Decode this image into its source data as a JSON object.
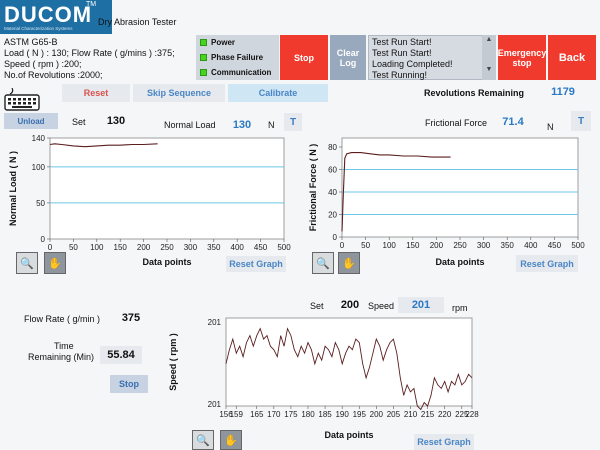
{
  "header": {
    "logo": "DUCOM",
    "logo_tm": "TM",
    "logo_sub": "Material Characterization Systems",
    "machine_title": "Dry Abrasion Tester"
  },
  "test_info": {
    "line1": "ASTM G65-B",
    "line2": "Load ( N ) : 130;  Flow Rate ( g/mins ) :375;",
    "line3": "Speed ( rpm ) :200;",
    "line4": "No.of Revolutions :2000;"
  },
  "status": {
    "items": [
      "Power",
      "Phase Failure",
      "Communication"
    ],
    "led_color": "#48d323"
  },
  "buttons": {
    "stop": "Stop",
    "clear_log": "Clear Log",
    "emergency_stop": "Emergency stop",
    "back": "Back",
    "reset": "Reset",
    "skip_sequence": "Skip Sequence",
    "calibrate": "Calibrate",
    "unload": "Unload",
    "t1": "T",
    "t2": "T",
    "reset_graph": "Reset Graph",
    "stop_timer": "Stop"
  },
  "log": {
    "lines": [
      "Test Run Start!",
      "Test Run Start!",
      "Loading Completed!",
      "Test Running!"
    ]
  },
  "revolutions": {
    "label": "Revolutions Remaining",
    "value": "1179"
  },
  "load": {
    "set_label": "Set",
    "set_value": "130",
    "normal_label": "Normal Load",
    "normal_value": "130",
    "unit": "N"
  },
  "friction": {
    "label": "Frictional Force",
    "value": "71.4",
    "unit": "N"
  },
  "flow": {
    "label": "Flow Rate  ( g/min )",
    "value": "375"
  },
  "time": {
    "label1": "Time",
    "label2": "Remaining (Min)",
    "value": "55.84"
  },
  "speed": {
    "set_label": "Set",
    "set_value": "200",
    "speed_label": "Speed",
    "speed_value": "201",
    "unit": "rpm"
  },
  "colors": {
    "accent_blue": "#2b78c4",
    "red_button": "#f03a2e",
    "grey_button": "#98a8bd",
    "trace": "#5a1e1e",
    "refline": "#6ec6e8"
  },
  "chart_data": [
    {
      "type": "line",
      "xlabel": "Data points",
      "ylabel": "Normal Load ( N )",
      "xlim": [
        0,
        500
      ],
      "ylim": [
        0,
        140
      ],
      "xticks": [
        0,
        50,
        100,
        150,
        200,
        250,
        300,
        350,
        400,
        450,
        500
      ],
      "yticks": [
        0,
        50,
        100,
        140
      ],
      "reference_lines": [
        50,
        100
      ],
      "series": [
        {
          "x": [
            0,
            10,
            25,
            50,
            75,
            100,
            125,
            150,
            175,
            200,
            230
          ],
          "y": [
            131,
            132,
            131,
            129,
            128,
            129,
            130,
            130,
            131,
            131,
            132
          ]
        }
      ]
    },
    {
      "type": "line",
      "xlabel": "Data points",
      "ylabel": "Frictional Force ( N )",
      "xlim": [
        0,
        500
      ],
      "ylim": [
        0,
        88
      ],
      "xticks": [
        0,
        50,
        100,
        150,
        200,
        250,
        300,
        350,
        400,
        450,
        500
      ],
      "yticks": [
        0,
        20,
        40,
        60,
        80
      ],
      "reference_lines": [
        20,
        40,
        60
      ],
      "series": [
        {
          "x": [
            0,
            3,
            6,
            10,
            20,
            40,
            60,
            80,
            100,
            130,
            160,
            190,
            220,
            230
          ],
          "y": [
            5,
            40,
            70,
            74,
            75,
            75,
            74,
            73,
            73,
            72,
            72,
            71,
            71,
            71
          ]
        }
      ]
    },
    {
      "type": "line",
      "xlabel": "Data points",
      "ylabel": "Speed ( rpm )",
      "xlim": [
        156,
        228
      ],
      "ylim": [
        200.8,
        201.05
      ],
      "ytick_labels": [
        "201",
        "201"
      ],
      "xticks": [
        156,
        159,
        165,
        170,
        175,
        180,
        185,
        190,
        195,
        200,
        205,
        210,
        215,
        220,
        225,
        228
      ],
      "series": [
        {
          "x": [
            156,
            157,
            158,
            159,
            160,
            161,
            162,
            163,
            164,
            165,
            166,
            167,
            168,
            169,
            170,
            171,
            172,
            173,
            174,
            175,
            176,
            177,
            178,
            179,
            180,
            181,
            182,
            183,
            184,
            185,
            186,
            187,
            188,
            189,
            190,
            191,
            192,
            193,
            194,
            195,
            196,
            197,
            198,
            199,
            200,
            201,
            202,
            203,
            204,
            205,
            206,
            207,
            208,
            209,
            210,
            211,
            212,
            213,
            214,
            215,
            216,
            217,
            218,
            219,
            220,
            221,
            222,
            223,
            224,
            225,
            226,
            227,
            228
          ],
          "y": [
            200.92,
            200.96,
            200.99,
            200.95,
            200.97,
            200.94,
            200.98,
            201.0,
            200.97,
            201.0,
            201.02,
            200.99,
            201.0,
            200.97,
            200.96,
            200.94,
            201.0,
            200.97,
            201.02,
            201.0,
            200.96,
            200.94,
            200.97,
            200.95,
            200.98,
            200.96,
            200.92,
            200.95,
            200.93,
            200.97,
            200.96,
            200.94,
            200.98,
            200.96,
            200.92,
            200.95,
            200.97,
            200.96,
            200.99,
            200.98,
            200.92,
            200.88,
            200.91,
            200.95,
            200.99,
            200.97,
            200.93,
            200.96,
            200.98,
            200.99,
            200.95,
            200.88,
            200.83,
            200.86,
            200.84,
            200.85,
            200.8,
            200.79,
            200.81,
            200.8,
            200.83,
            200.88,
            200.86,
            200.85,
            200.87,
            200.84,
            200.87,
            200.86,
            200.89,
            200.86,
            200.87,
            200.89,
            200.88
          ]
        }
      ]
    }
  ]
}
